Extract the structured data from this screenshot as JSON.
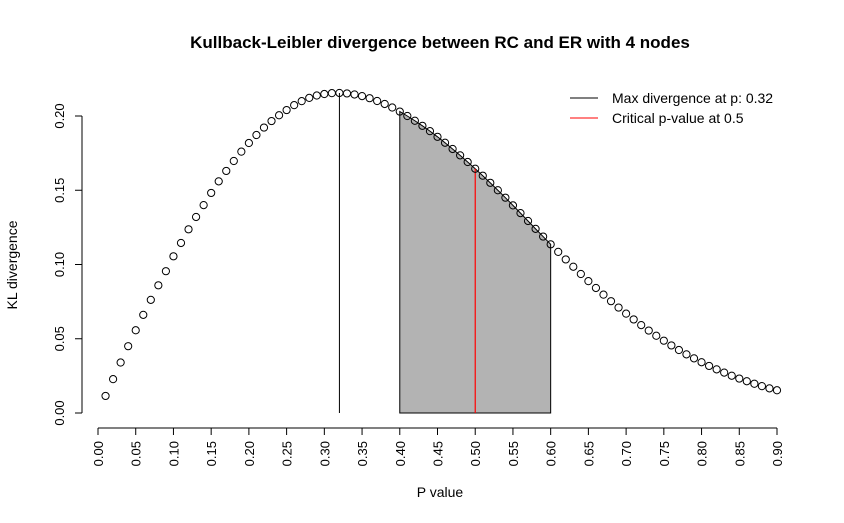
{
  "chart_data": {
    "type": "scatter",
    "title": "Kullback-Leibler divergence between RC and ER with 4 nodes",
    "xlabel": "P value",
    "ylabel": "KL divergence",
    "xlim": [
      0.0,
      0.9
    ],
    "ylim": [
      0.0,
      0.2
    ],
    "x_ticks": [
      "0.00",
      "0.05",
      "0.10",
      "0.15",
      "0.20",
      "0.25",
      "0.30",
      "0.35",
      "0.40",
      "0.45",
      "0.50",
      "0.55",
      "0.60",
      "0.65",
      "0.70",
      "0.75",
      "0.80",
      "0.85",
      "0.90"
    ],
    "y_ticks": [
      "0.00",
      "0.05",
      "0.10",
      "0.15",
      "0.20"
    ],
    "grid": false,
    "series": [
      {
        "marker": "open-circle",
        "color": "#000000",
        "x": [
          0.01,
          0.02,
          0.03,
          0.04,
          0.05,
          0.06,
          0.07,
          0.08,
          0.09,
          0.1,
          0.11,
          0.12,
          0.13,
          0.14,
          0.15,
          0.16,
          0.17,
          0.18,
          0.19,
          0.2,
          0.21,
          0.22,
          0.23,
          0.24,
          0.25,
          0.26,
          0.27,
          0.28,
          0.29,
          0.3,
          0.31,
          0.32,
          0.33,
          0.34,
          0.35,
          0.36,
          0.37,
          0.38,
          0.39,
          0.4,
          0.41,
          0.42,
          0.43,
          0.44,
          0.45,
          0.46,
          0.47,
          0.48,
          0.49,
          0.5,
          0.51,
          0.52,
          0.53,
          0.54,
          0.55,
          0.56,
          0.57,
          0.58,
          0.59,
          0.6,
          0.61,
          0.62,
          0.63,
          0.64,
          0.65,
          0.66,
          0.67,
          0.68,
          0.69,
          0.7,
          0.71,
          0.72,
          0.73,
          0.74,
          0.75,
          0.76,
          0.77,
          0.78,
          0.79,
          0.8,
          0.81,
          0.82,
          0.83,
          0.84,
          0.85,
          0.86,
          0.87,
          0.88,
          0.89,
          0.9
        ],
        "y": [
          0.0115,
          0.0228,
          0.034,
          0.045,
          0.0557,
          0.0661,
          0.0762,
          0.086,
          0.0955,
          0.1055,
          0.1145,
          0.1237,
          0.132,
          0.14,
          0.1482,
          0.156,
          0.163,
          0.1697,
          0.176,
          0.1818,
          0.1872,
          0.1922,
          0.1966,
          0.2005,
          0.204,
          0.2073,
          0.21,
          0.2122,
          0.2138,
          0.2148,
          0.2154,
          0.2155,
          0.2152,
          0.2145,
          0.2134,
          0.212,
          0.2101,
          0.2081,
          0.2057,
          0.203,
          0.2,
          0.1968,
          0.1934,
          0.1898,
          0.186,
          0.182,
          0.1778,
          0.1735,
          0.169,
          0.1645,
          0.1598,
          0.155,
          0.15,
          0.145,
          0.1398,
          0.1346,
          0.1293,
          0.124,
          0.1188,
          0.1136,
          0.1085,
          0.1034,
          0.0985,
          0.0936,
          0.0888,
          0.0842,
          0.0797,
          0.0753,
          0.071,
          0.0669,
          0.063,
          0.0592,
          0.0555,
          0.052,
          0.0487,
          0.0455,
          0.0424,
          0.0395,
          0.0368,
          0.0342,
          0.0317,
          0.0294,
          0.0272,
          0.0251,
          0.0232,
          0.0214,
          0.0197,
          0.0181,
          0.0166,
          0.0153
        ]
      }
    ],
    "annotations": {
      "max_divergence_line": {
        "x": 0.32,
        "color": "#000000"
      },
      "critical_line": {
        "x": 0.5,
        "color": "#ff0000"
      },
      "shaded_region": {
        "from": 0.4,
        "to": 0.6,
        "fill": "#b3b3b3"
      }
    },
    "legend": {
      "placement": "top-right",
      "entries": [
        {
          "label": "Max divergence at p: 0.32",
          "color": "#000000"
        },
        {
          "label": "Critical p-value at 0.5",
          "color": "#ff0000"
        }
      ]
    }
  }
}
